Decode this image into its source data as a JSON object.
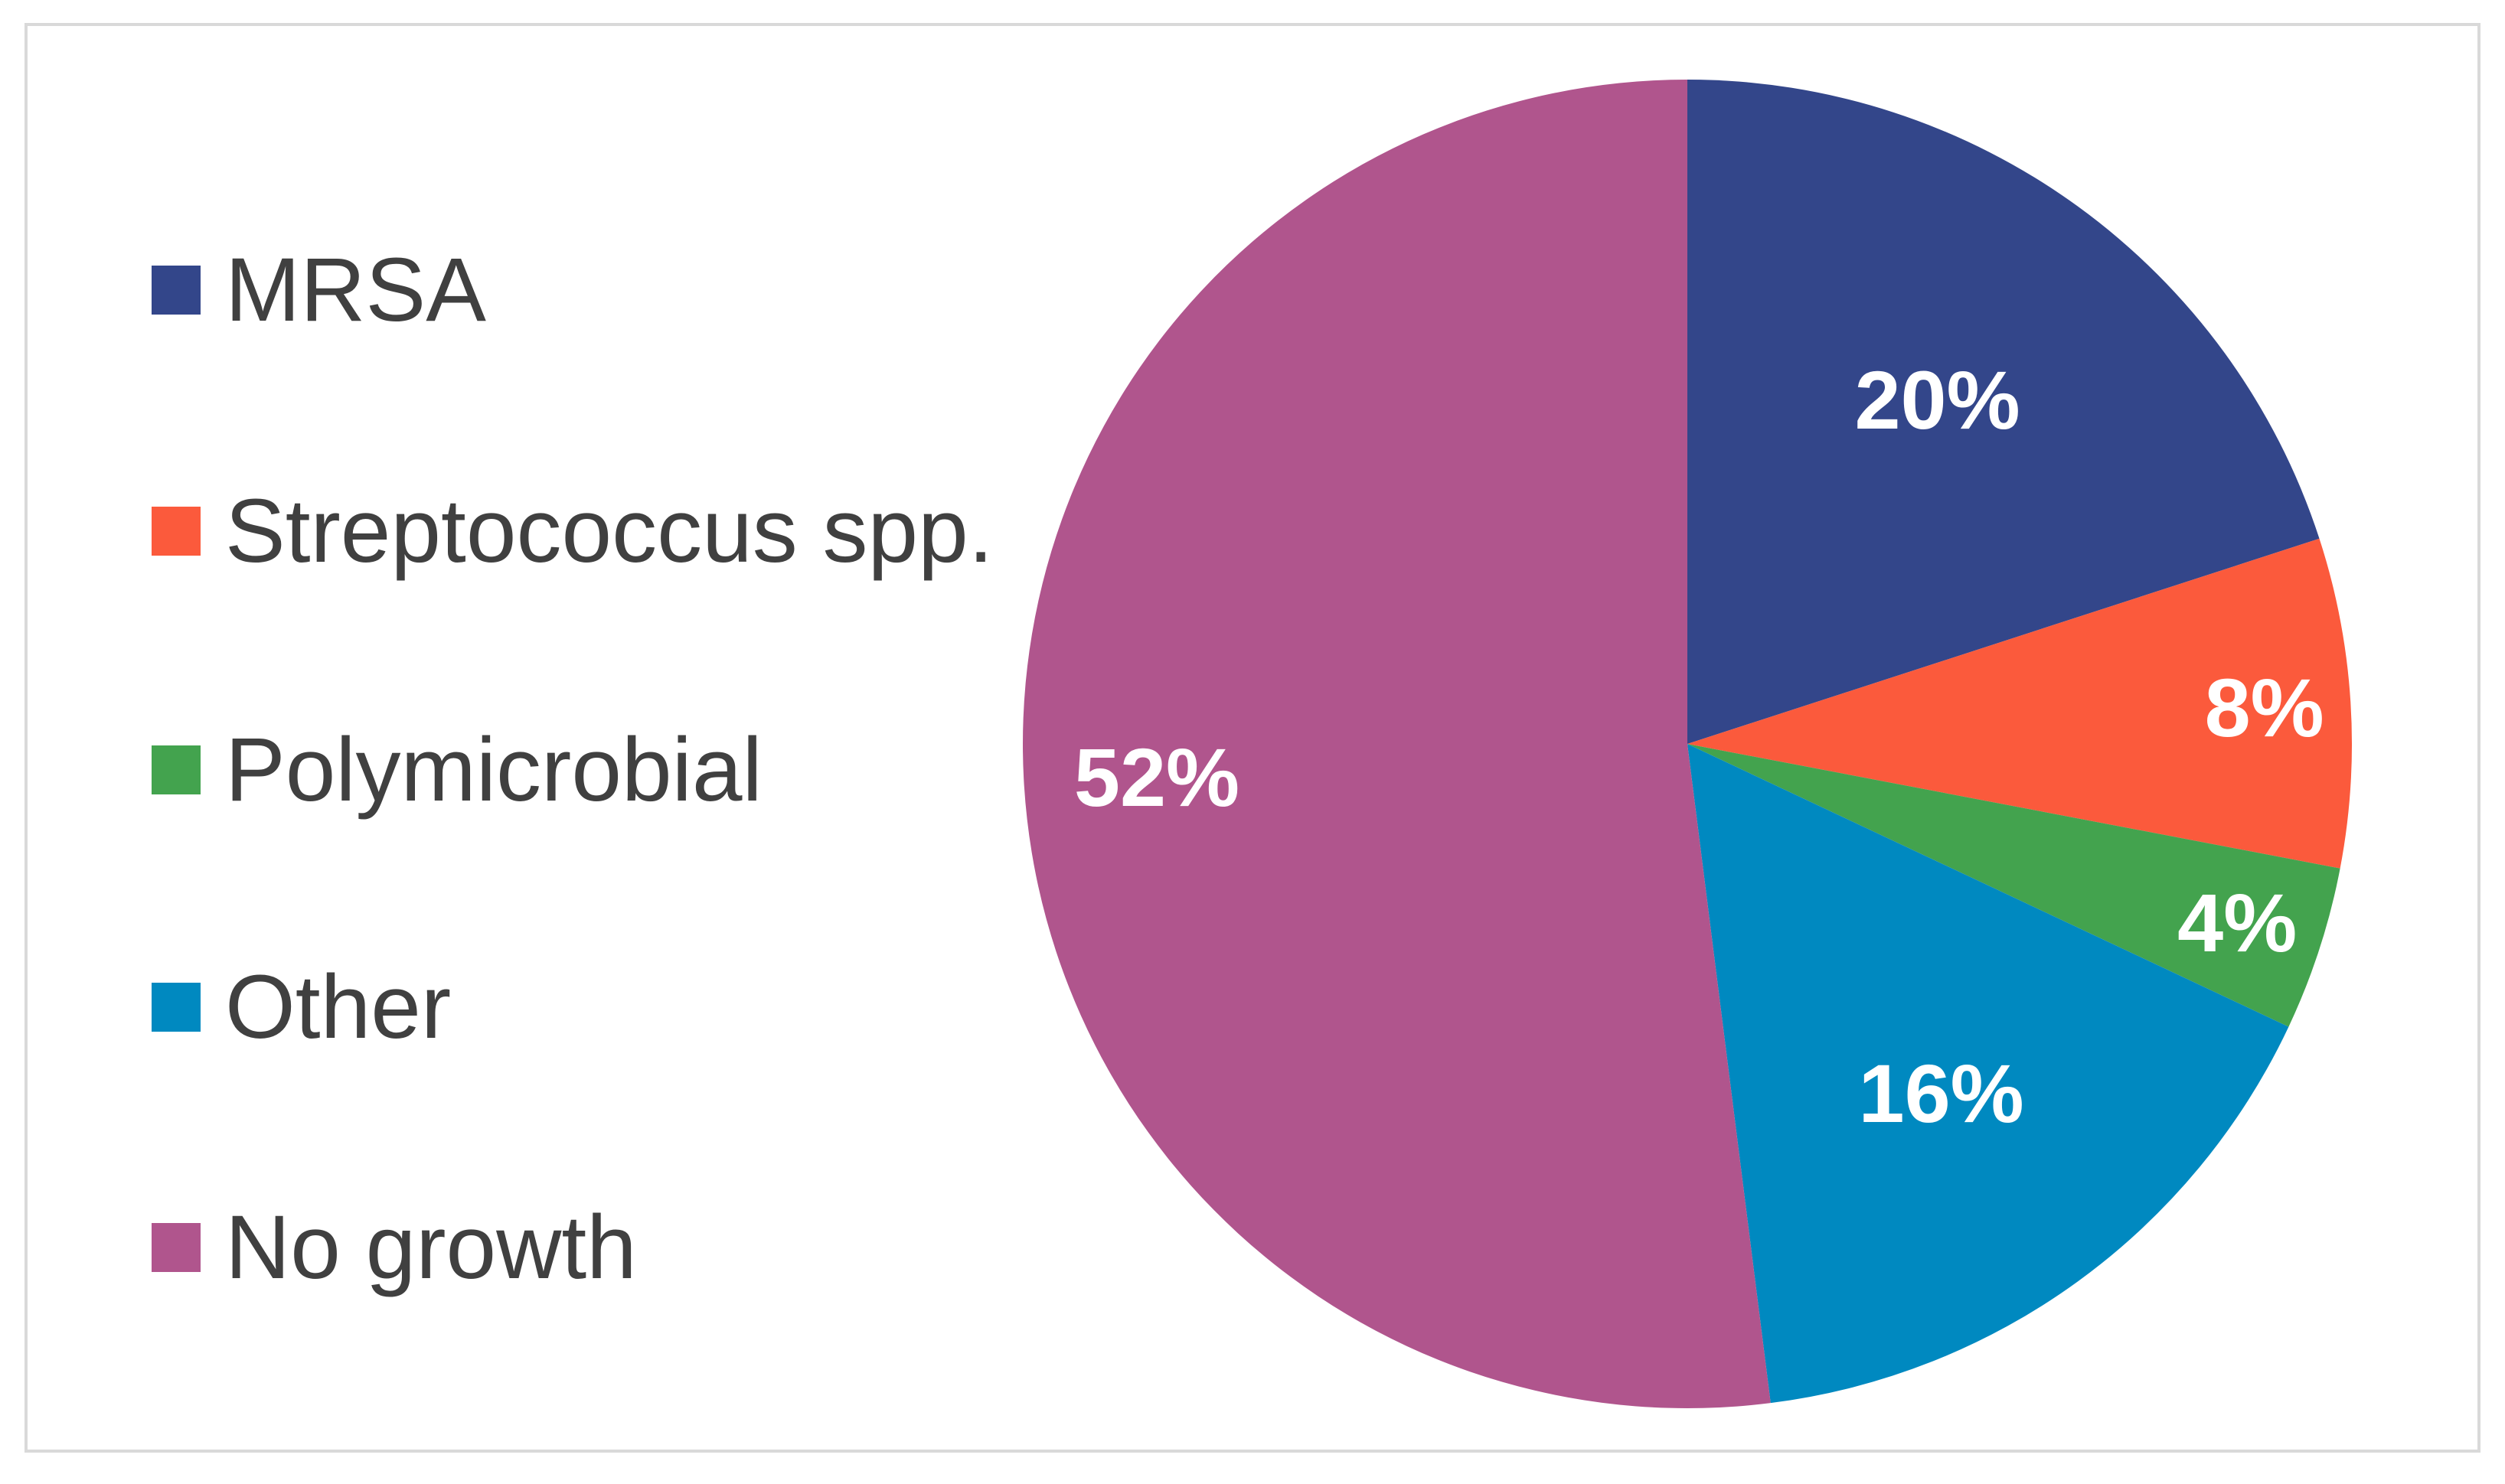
{
  "chart_data": {
    "type": "pie",
    "title": "",
    "legend_position": "left",
    "start_angle": "12 o'clock",
    "direction": "clockwise",
    "slices": [
      {
        "name": "MRSA",
        "value": 20,
        "label": "20%",
        "color": "#33468a"
      },
      {
        "name": "Streptococcus spp.",
        "value": 8,
        "label": "8%",
        "color": "#fb5a3c"
      },
      {
        "name": "Polymicrobial",
        "value": 4,
        "label": "4%",
        "color": "#43a34e"
      },
      {
        "name": "Other",
        "value": 16,
        "label": "16%",
        "color": "#0089c0"
      },
      {
        "name": "No growth",
        "value": 52,
        "label": "52%",
        "color": "#b0558d"
      }
    ]
  }
}
